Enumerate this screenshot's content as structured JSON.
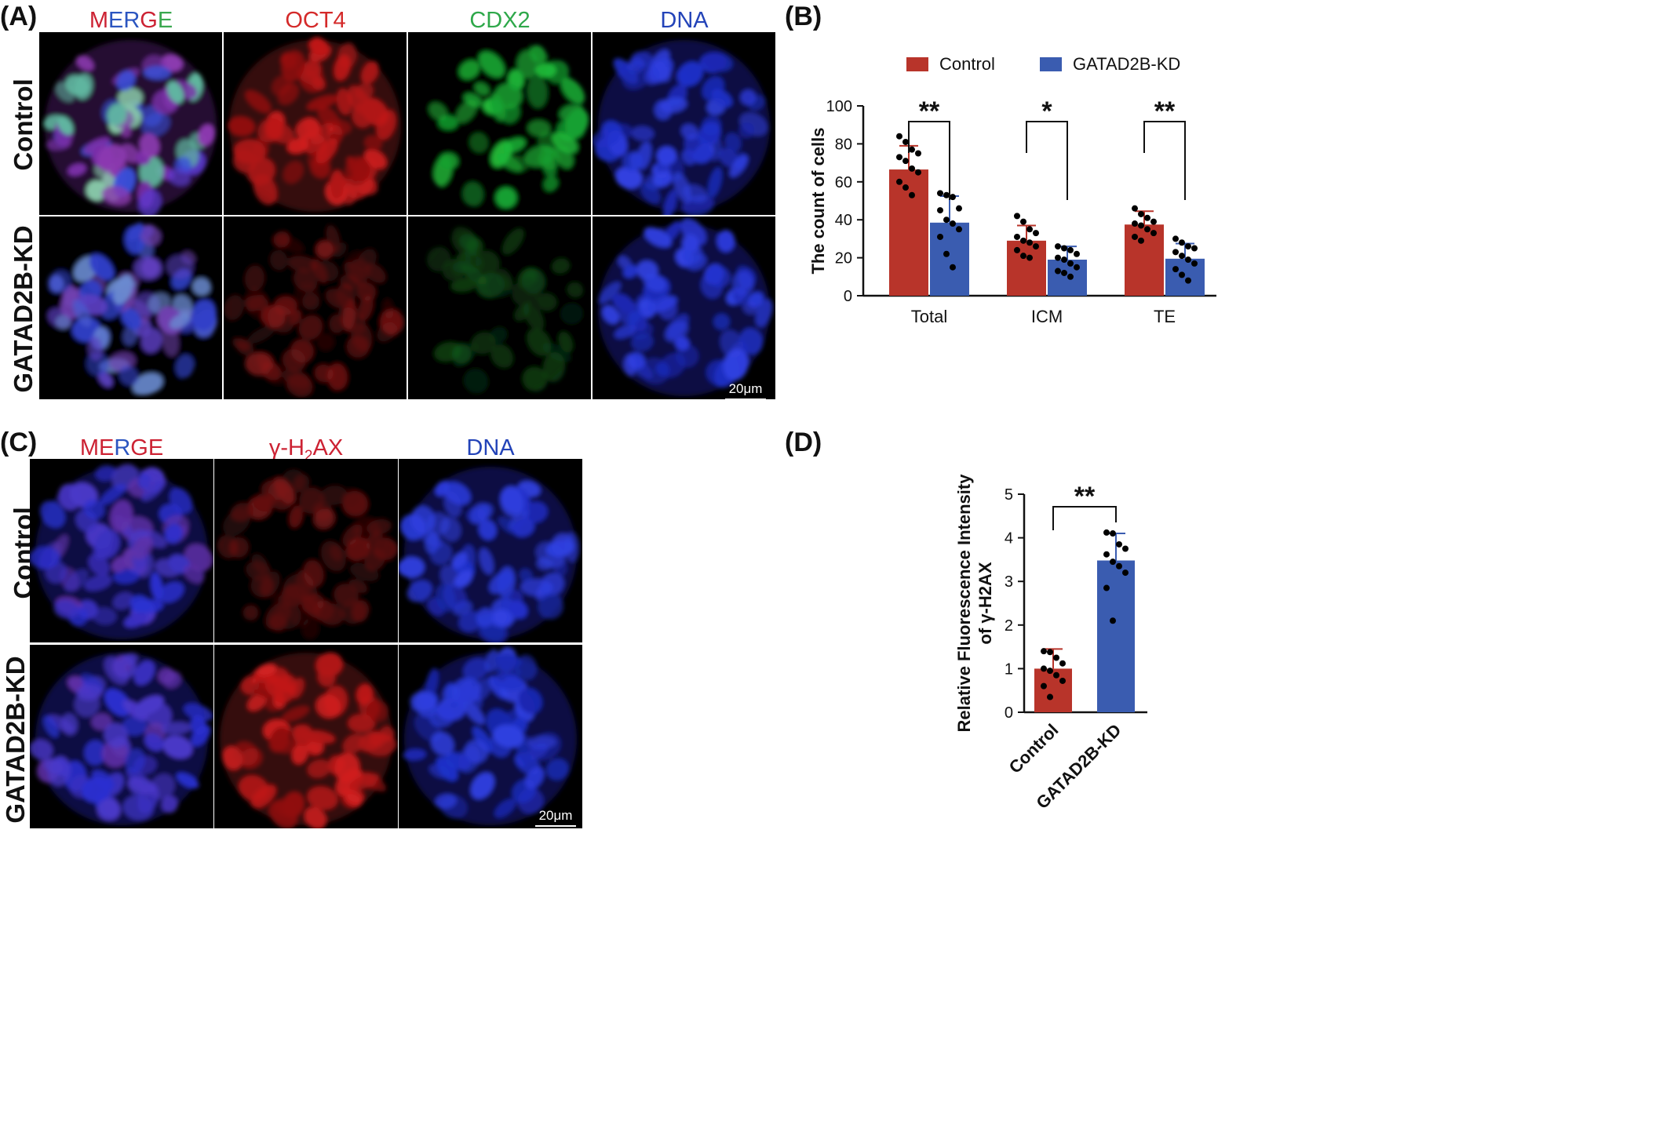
{
  "panels": {
    "A": {
      "label": "(A)",
      "columns": [
        {
          "name": "merge",
          "text": "MERGE",
          "parts": [
            {
              "t": "M",
              "c": "#cc2233"
            },
            {
              "t": "ER",
              "c": "#2b55c0"
            },
            {
              "t": "G",
              "c": "#cc2233"
            },
            {
              "t": "E",
              "c": "#3aa84f"
            }
          ]
        },
        {
          "name": "oct4",
          "text": "OCT4",
          "color": "#d42a2a"
        },
        {
          "name": "cdx2",
          "text": "CDX2",
          "color": "#2ea84a"
        },
        {
          "name": "dna",
          "text": "DNA",
          "color": "#2343b8"
        }
      ],
      "rows": [
        "Control",
        "GATAD2B-KD"
      ],
      "scale_bar": "20μm"
    },
    "B": {
      "label": "(B)"
    },
    "C": {
      "label": "(C)",
      "columns": [
        {
          "name": "merge",
          "text": "MERGE",
          "parts": [
            {
              "t": "ME",
              "c": "#cc2233"
            },
            {
              "t": "R",
              "c": "#2b55c0"
            },
            {
              "t": "GE",
              "c": "#cc2233"
            }
          ]
        },
        {
          "name": "gh2ax",
          "text": "γ-H2AX",
          "color": "#cc2233"
        },
        {
          "name": "dna",
          "text": "DNA",
          "color": "#2343b8"
        }
      ],
      "rows": [
        "Control",
        "GATAD2B-KD"
      ],
      "scale_bar": "20μm"
    },
    "D": {
      "label": "(D)"
    }
  },
  "chart_data": [
    {
      "panel": "B",
      "type": "bar",
      "categories": [
        "Total",
        "ICM",
        "TE"
      ],
      "series": [
        {
          "name": "Control",
          "color": "#b8342a",
          "values": [
            66.5,
            29,
            37.5
          ],
          "sd": [
            12.5,
            8,
            7
          ],
          "points": [
            [
              84,
              81,
              77,
              75,
              73,
              71,
              67,
              65,
              60,
              57,
              53
            ],
            [
              42,
              39,
              35,
              33,
              31,
              29,
              28,
              26,
              24,
              21,
              20
            ],
            [
              46,
              43,
              41,
              39,
              38,
              37,
              35,
              33,
              31,
              29
            ]
          ]
        },
        {
          "name": "GATAD2B-KD",
          "color": "#3a5cb0",
          "values": [
            38.5,
            19,
            19.5
          ],
          "sd": [
            14,
            7,
            8
          ],
          "points": [
            [
              54,
              53,
              52,
              46,
              45,
              40,
              38,
              35,
              31,
              22,
              15
            ],
            [
              26,
              25,
              24,
              22,
              20,
              19,
              17,
              15,
              13,
              12,
              10
            ],
            [
              30,
              28,
              26,
              25,
              23,
              21,
              19,
              17,
              14,
              11,
              8
            ]
          ]
        }
      ],
      "ylabel": "The count of cells",
      "ylim": [
        0,
        100
      ],
      "yticks": [
        0,
        20,
        40,
        60,
        80,
        100
      ],
      "significance": [
        "**",
        "*",
        "**"
      ],
      "legend": "top"
    },
    {
      "panel": "D",
      "type": "bar",
      "categories": [
        "Control",
        "GATAD2B-KD"
      ],
      "values": [
        1.0,
        3.48
      ],
      "sd": [
        0.45,
        0.62
      ],
      "colors": [
        "#b8342a",
        "#3a5cb0"
      ],
      "points": [
        [
          1.4,
          1.38,
          1.25,
          1.12,
          1.0,
          0.95,
          0.85,
          0.72,
          0.6,
          0.35
        ],
        [
          4.12,
          4.1,
          3.85,
          3.75,
          3.62,
          3.45,
          3.35,
          3.2,
          2.85,
          2.1
        ]
      ],
      "ylabel_line1": "Relative Fluorescence Intensity",
      "ylabel_line2": "of γ-H2AX",
      "ylim": [
        0,
        5
      ],
      "yticks": [
        0,
        1,
        2,
        3,
        4,
        5
      ],
      "significance": "**"
    }
  ]
}
